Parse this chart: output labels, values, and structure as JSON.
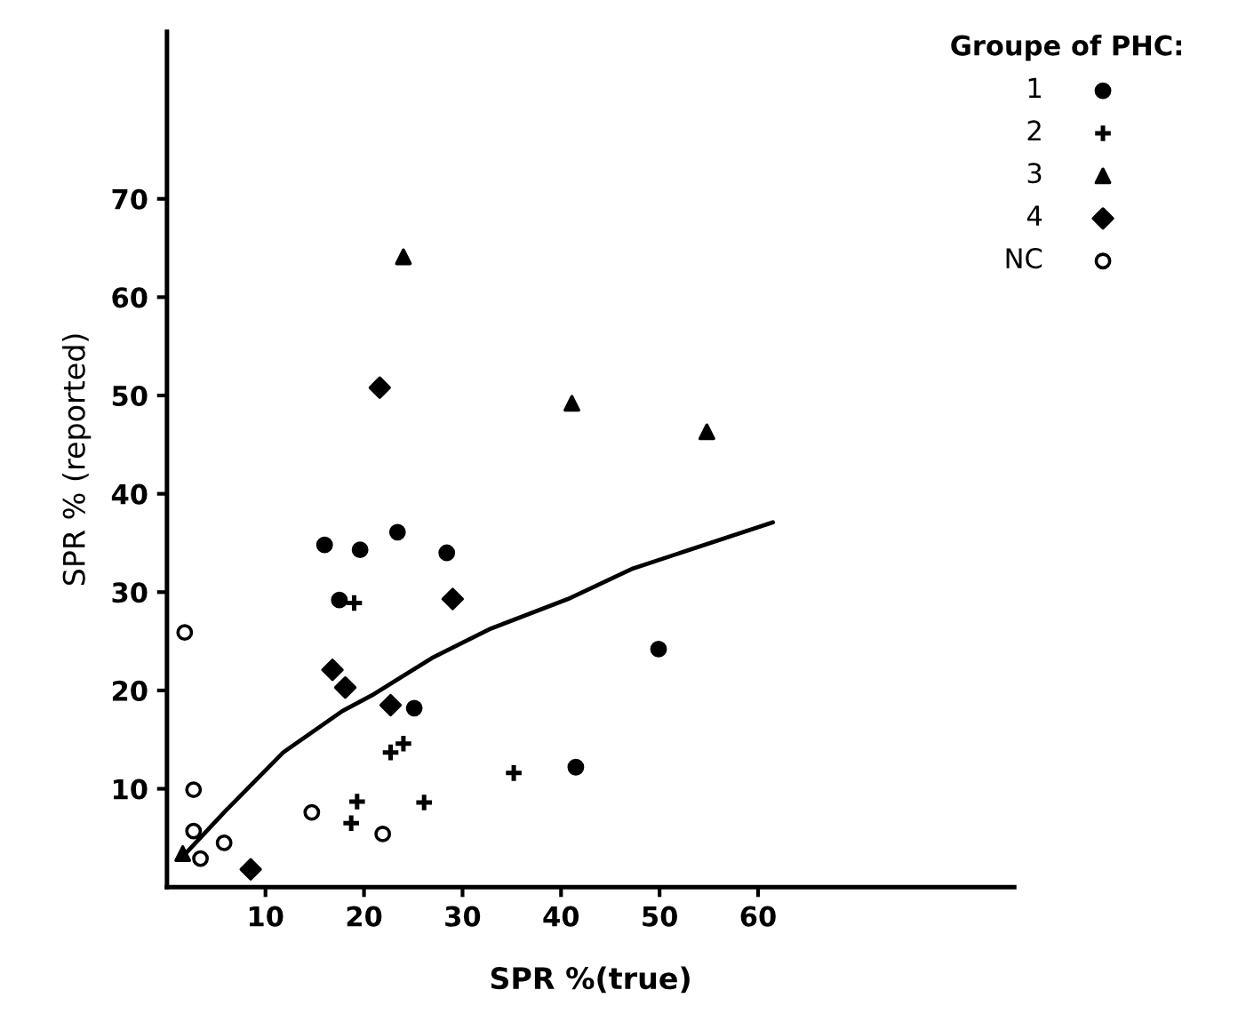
{
  "chart_data": {
    "type": "scatter",
    "xlabel": "SPR %(true)",
    "ylabel": "SPR % (reported)",
    "legend_title": "Groupe of PHC:",
    "xlim": [
      0,
      86
    ],
    "ylim": [
      0,
      87
    ],
    "xticks": [
      10,
      20,
      30,
      40,
      50,
      60
    ],
    "yticks": [
      10,
      20,
      30,
      40,
      50,
      60,
      70
    ],
    "legend": "top right",
    "grid": false,
    "series": [
      {
        "name": "1",
        "color": "#000000",
        "marker": "circle",
        "x": [
          16.0,
          19.6,
          23.4,
          28.4,
          17.5,
          25.1,
          41.5,
          49.9
        ],
        "values": [
          34.8,
          34.3,
          36.1,
          34.0,
          29.2,
          18.2,
          12.2,
          24.2
        ]
      },
      {
        "name": "2",
        "color": "#000000",
        "marker": "cross",
        "x": [
          19.0,
          22.7,
          24.0,
          19.3,
          18.7,
          26.1,
          35.2
        ],
        "values": [
          28.9,
          13.7,
          14.6,
          8.7,
          6.5,
          8.6,
          11.6
        ]
      },
      {
        "name": "3",
        "color": "#000000",
        "marker": "triangle",
        "x": [
          24.0,
          41.1,
          54.8,
          1.6
        ],
        "values": [
          64.1,
          49.2,
          46.3,
          3.4
        ]
      },
      {
        "name": "4",
        "color": "#000000",
        "marker": "diamond",
        "x": [
          21.6,
          29.0,
          16.8,
          18.1,
          22.7,
          8.5
        ],
        "values": [
          50.8,
          29.3,
          22.1,
          20.3,
          18.5,
          1.8
        ]
      },
      {
        "name": "NC",
        "color": "#ffffff",
        "marker": "circle",
        "x": [
          1.8,
          2.7,
          2.7,
          5.8,
          3.4,
          14.7,
          21.9
        ],
        "values": [
          25.9,
          9.9,
          5.7,
          4.5,
          2.9,
          7.6,
          5.4
        ]
      },
      {
        "type": "line",
        "color": "#000000",
        "marker": "none",
        "line_style": "solid",
        "x": [
          1.6,
          5.8,
          11.8,
          17.8,
          20.8,
          26.9,
          32.9,
          40.7,
          47.3,
          61.5
        ],
        "values": [
          3.1,
          7.6,
          13.7,
          17.9,
          19.5,
          23.3,
          26.3,
          29.3,
          32.4,
          37.1
        ]
      }
    ]
  }
}
